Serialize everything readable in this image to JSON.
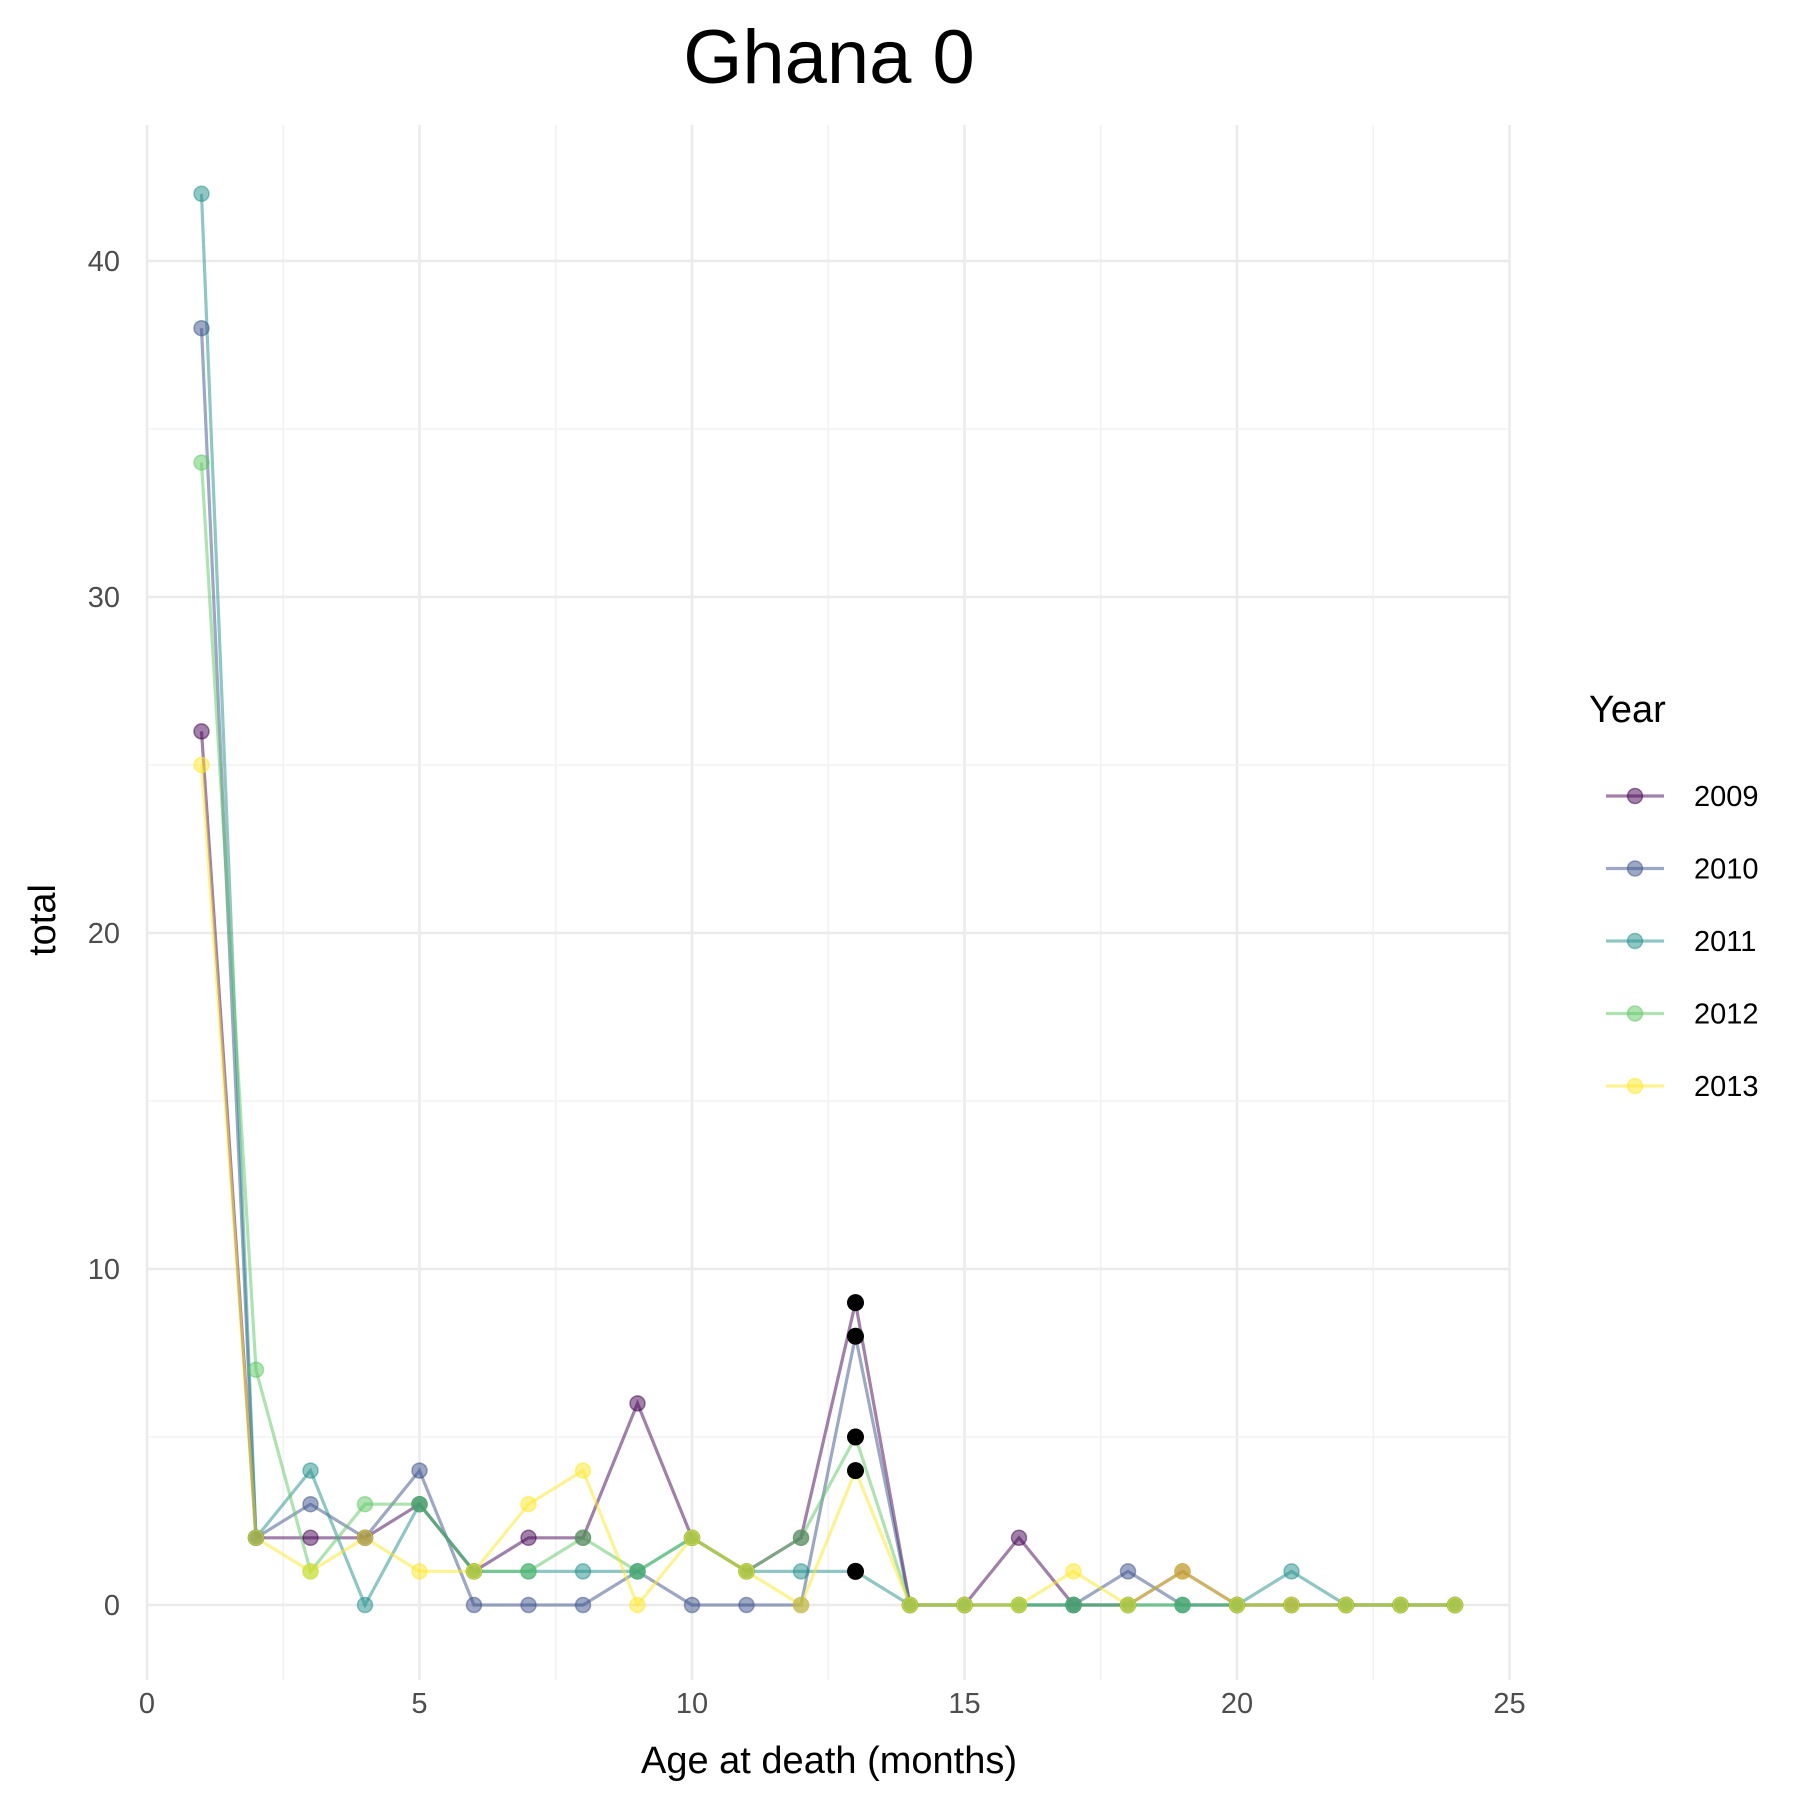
{
  "chart_data": {
    "type": "line",
    "title": "Ghana 0",
    "xlabel": "Age at death (months)",
    "ylabel": "total",
    "xlim": [
      0,
      25
    ],
    "ylim": [
      -2.5,
      44
    ],
    "x_ticks": [
      0,
      5,
      10,
      15,
      20,
      25
    ],
    "y_ticks": [
      0,
      10,
      20,
      30,
      40
    ],
    "grid": true,
    "legend": {
      "title": "Year",
      "position": "right"
    },
    "x": [
      1,
      2,
      3,
      4,
      5,
      6,
      7,
      8,
      9,
      10,
      11,
      12,
      13,
      14,
      15,
      16,
      17,
      18,
      19,
      20,
      21,
      22,
      23,
      24
    ],
    "series": [
      {
        "name": "2009",
        "color": "#440154",
        "values": [
          26,
          2,
          2,
          2,
          3,
          1,
          2,
          2,
          6,
          2,
          1,
          2,
          9,
          0,
          0,
          2,
          0,
          0,
          1,
          0,
          0,
          0,
          0,
          0
        ]
      },
      {
        "name": "2010",
        "color": "#3B528B",
        "values": [
          38,
          2,
          3,
          2,
          4,
          0,
          0,
          0,
          1,
          0,
          0,
          0,
          8,
          0,
          0,
          0,
          0,
          1,
          0,
          0,
          0,
          0,
          0,
          0
        ]
      },
      {
        "name": "2011",
        "color": "#21908C",
        "values": [
          42,
          2,
          4,
          0,
          3,
          1,
          1,
          1,
          1,
          2,
          1,
          1,
          1,
          0,
          0,
          0,
          0,
          0,
          0,
          0,
          1,
          0,
          0,
          0
        ]
      },
      {
        "name": "2012",
        "color": "#5DC863",
        "values": [
          34,
          7,
          1,
          3,
          3,
          1,
          1,
          2,
          1,
          2,
          1,
          2,
          5,
          0,
          0,
          0,
          0,
          0,
          0,
          0,
          0,
          0,
          0,
          0
        ]
      },
      {
        "name": "2013",
        "color": "#FDE725",
        "values": [
          25,
          2,
          1,
          2,
          1,
          1,
          3,
          4,
          0,
          2,
          1,
          0,
          4,
          0,
          0,
          0,
          1,
          0,
          1,
          0,
          0,
          0,
          0,
          0
        ]
      }
    ],
    "highlight_points": {
      "color": "#000000",
      "points": [
        {
          "x": 13,
          "y": 9
        },
        {
          "x": 13,
          "y": 8
        },
        {
          "x": 13,
          "y": 5
        },
        {
          "x": 13,
          "y": 4
        },
        {
          "x": 13,
          "y": 1
        }
      ]
    }
  }
}
